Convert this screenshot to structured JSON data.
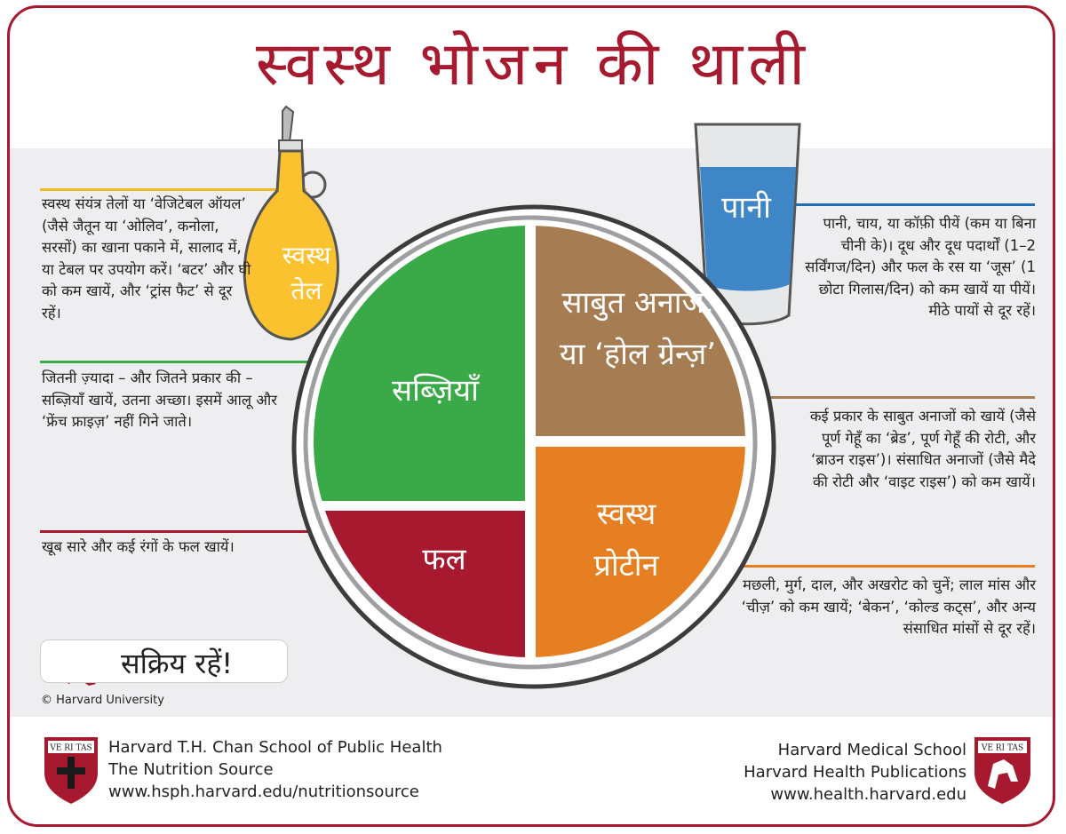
{
  "title": "स्वस्थ भोजन की थाली",
  "colors": {
    "accent": "#a6192e",
    "vegetables": "#3aaa48",
    "grains": "#a67c52",
    "fruits": "#a6192e",
    "protein": "#e67f22",
    "oil": "#f7b928",
    "water": "#3f86c6"
  },
  "plate": {
    "vegetables": "सब्ज़ियाँ",
    "grains": "साबुत अनाज, या ‘होल ग्रेन्ज़’",
    "fruits": "फल",
    "protein": "स्वस्थ प्रोटीन"
  },
  "oil": {
    "label_1": "स्वस्थ",
    "label_2": "तेल",
    "text": "स्वस्थ संयंत्र तेलों या ‘वेजिटेबल ऑयल’ (जैसे जैतून या ‘ओलिव’, कनोला, सरसों) का खाना पकाने में, सालाद में, या टेबल पर उपयोग करें। ‘बटर’ और घी को कम खायें, और ‘ट्रांस फैट’ से दूर रहें।"
  },
  "vegetables_text": "जितनी ज़्यादा – और जितने प्रकार की – सब्ज़ियाँ खायें, उतना अच्छा। इसमें आलू और ‘फ्रेंच फ्राइज़’ नहीं गिने जाते।",
  "fruits_text": "खूब सारे और कई रंगों के फल खायें।",
  "water": {
    "label": "पानी",
    "text": "पानी, चाय, या कॉफ़ी पीयें (कम या बिना चीनी के)। दूध और दूध पदार्थों (1–2 सर्विंगज/दिन) और फल के रस या ‘जूस’ (1 छोटा गिलास/दिन) को कम खायें या पीयें। मीठे पायों से दूर रहें।"
  },
  "grains_text": "कई प्रकार के साबुत अनाजों को खायें (जैसे पूर्ण गेहूँ का ‘ब्रेड’, पूर्ण गेहूँ की रोटी, और ‘ब्राउन राइस’)। संसाधित अनाजों (जैसे मैदे की रोटी और ‘वाइट राइस’) को कम खायें।",
  "protein_text": "मछली, मुर्ग, दाल, और अखरोट को चुनें; लाल मांस और ‘चीज़’ को कम खायें; ‘बेकन’, ‘कोल्ड कट्स’, और अन्य संसाधित मांसों से दूर रहें।",
  "active": "सक्रिय रहें!",
  "copyright": "© Harvard University",
  "footer": {
    "left": [
      "Harvard T.H. Chan School of Public Health",
      "The Nutrition Source",
      "www.hsph.harvard.edu/nutritionsource"
    ],
    "right": [
      "Harvard Medical School",
      "Harvard Health Publications",
      "www.health.harvard.edu"
    ],
    "shield_text": "VE RI TAS"
  }
}
